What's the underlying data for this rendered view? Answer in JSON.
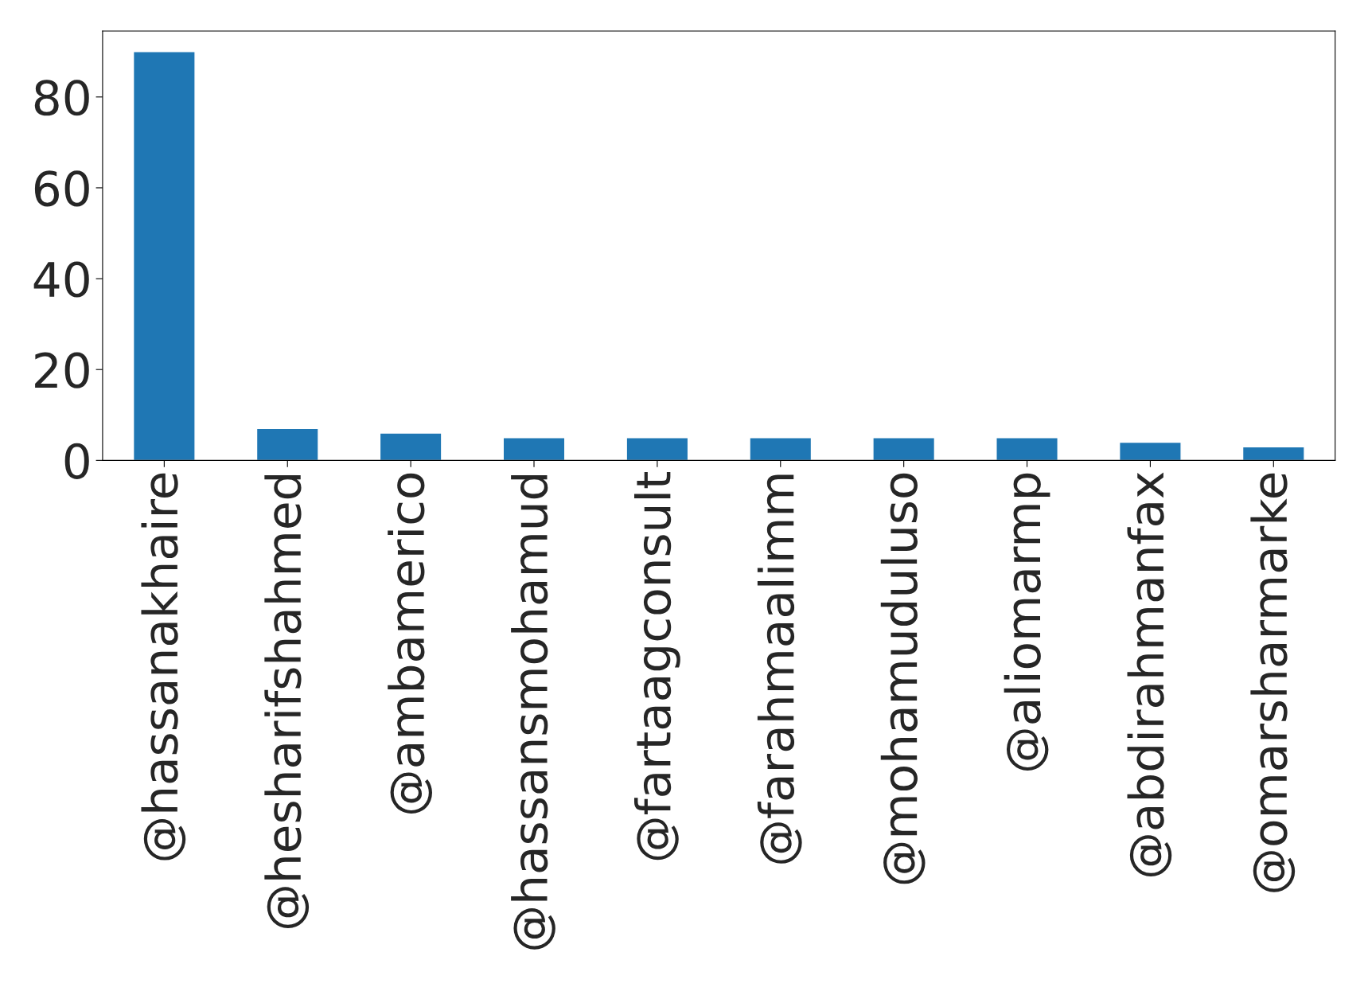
{
  "chart_data": {
    "type": "bar",
    "categories": [
      "@hassanakhaire",
      "@hesharifshahmed",
      "@ambamerico",
      "@hassansmohamud",
      "@fartaagconsult",
      "@farahmaalimm",
      "@mohamuduluso",
      "@aliomarmp",
      "@abdirahmanfax",
      "@omarsharmarke"
    ],
    "values": [
      90,
      7,
      6,
      5,
      5,
      5,
      5,
      5,
      4,
      3
    ],
    "color": "#1f77b4",
    "ylim": [
      0,
      94.5
    ],
    "yticks": [
      0,
      20,
      40,
      60,
      80
    ],
    "grid": false,
    "legend": false
  }
}
